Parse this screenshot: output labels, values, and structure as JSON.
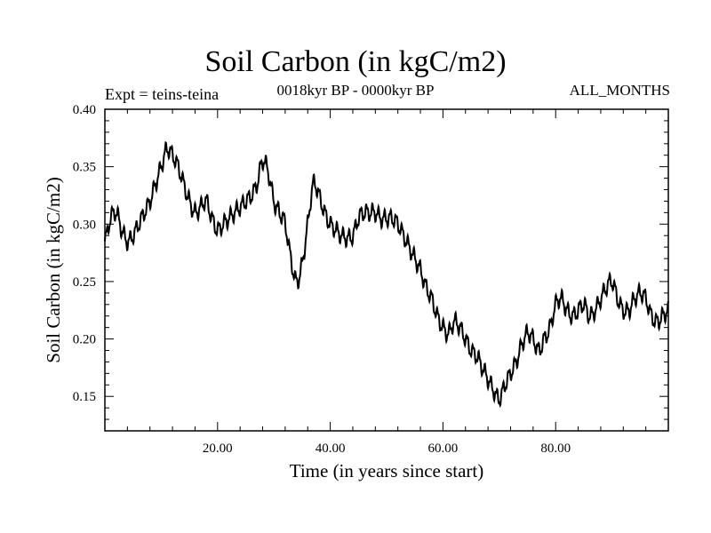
{
  "chart_data": {
    "type": "line",
    "title": "Soil Carbon (in kgC/m2)",
    "subtitle": "0018kyr BP - 0000kyr BP",
    "left_note": "Expt = teins-teina",
    "right_note": "ALL_MONTHS",
    "xlabel": "Time (in years since start)",
    "ylabel": "Soil Carbon (in kgC/m2)",
    "xlim": [
      0,
      100
    ],
    "ylim": [
      0.12,
      0.4
    ],
    "xticks": [
      20,
      40,
      60,
      80
    ],
    "xtick_labels": [
      "20.00",
      "40.00",
      "60.00",
      "80.00"
    ],
    "yticks": [
      0.15,
      0.2,
      0.25,
      0.3,
      0.35,
      0.4
    ],
    "ytick_labels": [
      "0.15",
      "0.20",
      "0.25",
      "0.30",
      "0.35",
      "0.40"
    ],
    "grid": false,
    "series": [
      {
        "name": "Soil Carbon",
        "x": [
          0,
          1,
          2,
          3,
          4,
          5,
          6,
          7,
          8,
          9,
          10,
          11,
          12,
          13,
          14,
          15,
          16,
          17,
          18,
          19,
          20,
          21,
          22,
          23,
          24,
          25,
          26,
          27,
          28,
          29,
          30,
          31,
          32,
          33,
          34,
          35,
          36,
          37,
          38,
          39,
          40,
          41,
          42,
          43,
          44,
          45,
          46,
          47,
          48,
          49,
          50,
          51,
          52,
          53,
          54,
          55,
          56,
          57,
          58,
          59,
          60,
          61,
          62,
          63,
          64,
          65,
          66,
          67,
          68,
          69,
          70,
          71,
          72,
          73,
          74,
          75,
          76,
          77,
          78,
          79,
          80,
          81,
          82,
          83,
          84,
          85,
          86,
          87,
          88,
          89,
          90,
          91,
          92,
          93,
          94,
          95,
          96,
          97,
          98,
          99,
          100
        ],
        "values": [
          0.285,
          0.305,
          0.31,
          0.295,
          0.285,
          0.29,
          0.3,
          0.31,
          0.32,
          0.335,
          0.35,
          0.365,
          0.36,
          0.35,
          0.335,
          0.32,
          0.31,
          0.315,
          0.32,
          0.305,
          0.295,
          0.3,
          0.305,
          0.31,
          0.315,
          0.32,
          0.325,
          0.335,
          0.355,
          0.345,
          0.32,
          0.31,
          0.3,
          0.27,
          0.25,
          0.265,
          0.3,
          0.335,
          0.325,
          0.31,
          0.3,
          0.295,
          0.29,
          0.288,
          0.29,
          0.305,
          0.31,
          0.31,
          0.31,
          0.305,
          0.305,
          0.305,
          0.3,
          0.29,
          0.28,
          0.27,
          0.26,
          0.245,
          0.235,
          0.22,
          0.21,
          0.205,
          0.215,
          0.21,
          0.2,
          0.19,
          0.185,
          0.175,
          0.165,
          0.155,
          0.148,
          0.16,
          0.17,
          0.18,
          0.195,
          0.205,
          0.2,
          0.19,
          0.2,
          0.21,
          0.23,
          0.235,
          0.225,
          0.22,
          0.225,
          0.23,
          0.22,
          0.225,
          0.235,
          0.245,
          0.25,
          0.235,
          0.225,
          0.225,
          0.235,
          0.24,
          0.235,
          0.22,
          0.215,
          0.22,
          0.225
        ]
      }
    ]
  }
}
